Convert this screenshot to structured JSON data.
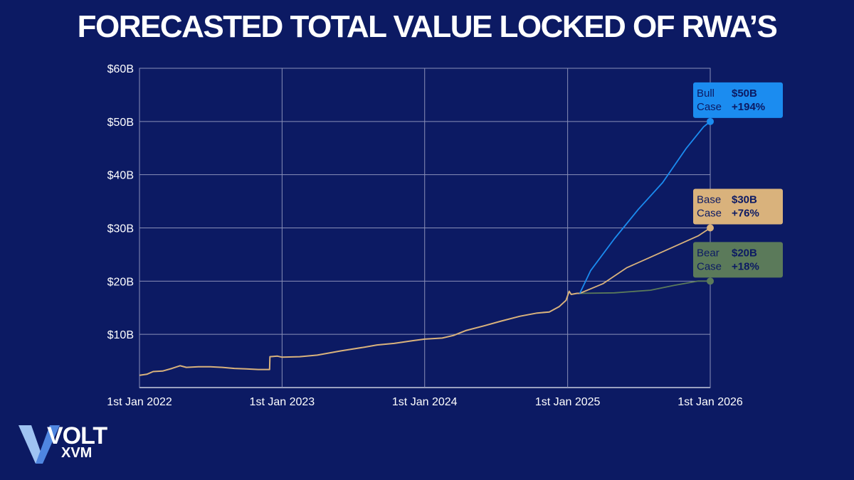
{
  "page": {
    "title": "FORECASTED TOTAL VALUE LOCKED OF RWA’S"
  },
  "logo": {
    "wordmark": "VOLT",
    "subtext": "XVM",
    "colors": {
      "v_light": "#9fc3f2",
      "v_mid": "#4f86e0",
      "text": "#ffffff"
    }
  },
  "colors": {
    "background": "#0c1a63",
    "grid": "#8a90b8",
    "axis_text": "#ffffff",
    "historical": "#d9b27c",
    "bull": "#1b8cf0",
    "base": "#d9b27c",
    "bear": "#5b7a5a"
  },
  "chart_data": {
    "type": "line",
    "title": "FORECASTED TOTAL VALUE LOCKED OF RWA’S",
    "xlabel": "",
    "ylabel": "",
    "x_axis": {
      "type": "date",
      "range": [
        "2022-01-01",
        "2026-01-01"
      ],
      "ticks": [
        "2022-01-01",
        "2023-01-01",
        "2024-01-01",
        "2025-01-01",
        "2026-01-01"
      ],
      "tick_labels": [
        "1st Jan 2022",
        "1st Jan 2023",
        "1st Jan 2024",
        "1st Jan 2025",
        "1st Jan 2026"
      ]
    },
    "y_axis": {
      "range": [
        0,
        60
      ],
      "unit": "billion USD",
      "ticks": [
        10,
        20,
        30,
        40,
        50,
        60
      ],
      "tick_labels": [
        "$10B",
        "$20B",
        "$30B",
        "$40B",
        "$50B",
        "$60B"
      ]
    },
    "grid": true,
    "series": [
      {
        "key": "historical",
        "style": "line",
        "points": [
          [
            "2022-01-01",
            2.3
          ],
          [
            "2022-01-20",
            2.5
          ],
          [
            "2022-02-05",
            3.0
          ],
          [
            "2022-03-01",
            3.1
          ],
          [
            "2022-03-25",
            3.6
          ],
          [
            "2022-04-15",
            4.1
          ],
          [
            "2022-05-01",
            3.8
          ],
          [
            "2022-06-01",
            3.9
          ],
          [
            "2022-07-01",
            3.9
          ],
          [
            "2022-08-01",
            3.8
          ],
          [
            "2022-09-01",
            3.6
          ],
          [
            "2022-10-01",
            3.5
          ],
          [
            "2022-11-01",
            3.4
          ],
          [
            "2022-11-30",
            3.4
          ],
          [
            "2022-12-01",
            5.8
          ],
          [
            "2022-12-20",
            5.9
          ],
          [
            "2023-01-01",
            5.7
          ],
          [
            "2023-02-15",
            5.8
          ],
          [
            "2023-04-01",
            6.1
          ],
          [
            "2023-06-01",
            6.9
          ],
          [
            "2023-08-01",
            7.6
          ],
          [
            "2023-09-01",
            8.0
          ],
          [
            "2023-10-15",
            8.3
          ],
          [
            "2023-12-01",
            8.8
          ],
          [
            "2024-01-01",
            9.1
          ],
          [
            "2024-02-15",
            9.3
          ],
          [
            "2024-03-15",
            9.8
          ],
          [
            "2024-04-15",
            10.7
          ],
          [
            "2024-06-01",
            11.6
          ],
          [
            "2024-07-15",
            12.5
          ],
          [
            "2024-09-01",
            13.4
          ],
          [
            "2024-10-15",
            14.0
          ],
          [
            "2024-11-15",
            14.2
          ],
          [
            "2024-12-10",
            15.2
          ],
          [
            "2024-12-28",
            16.4
          ],
          [
            "2025-01-05",
            18.1
          ],
          [
            "2025-01-10",
            17.5
          ],
          [
            "2025-01-25",
            17.7
          ],
          [
            "2025-02-01",
            17.7
          ]
        ]
      },
      {
        "key": "bull",
        "name": "Bull Case",
        "style": "line",
        "points": [
          [
            "2025-02-01",
            17.7
          ],
          [
            "2025-03-01",
            22.0
          ],
          [
            "2025-05-01",
            28.0
          ],
          [
            "2025-07-01",
            33.5
          ],
          [
            "2025-09-01",
            38.5
          ],
          [
            "2025-11-01",
            45.0
          ],
          [
            "2025-12-15",
            49.0
          ],
          [
            "2026-01-01",
            50.0
          ]
        ]
      },
      {
        "key": "base",
        "name": "Base Case",
        "style": "line",
        "points": [
          [
            "2025-02-01",
            17.7
          ],
          [
            "2025-04-01",
            19.5
          ],
          [
            "2025-06-01",
            22.5
          ],
          [
            "2025-08-01",
            24.5
          ],
          [
            "2025-10-01",
            26.5
          ],
          [
            "2025-12-01",
            28.5
          ],
          [
            "2026-01-01",
            30.0
          ]
        ]
      },
      {
        "key": "bear",
        "name": "Bear Case",
        "style": "line",
        "points": [
          [
            "2025-02-01",
            17.7
          ],
          [
            "2025-05-01",
            17.8
          ],
          [
            "2025-08-01",
            18.3
          ],
          [
            "2025-10-01",
            19.2
          ],
          [
            "2025-12-01",
            20.0
          ],
          [
            "2026-01-01",
            20.0
          ]
        ]
      }
    ],
    "callouts": [
      {
        "series": "bull",
        "line1": "Bull",
        "line2": "Case",
        "value": "$50B",
        "change": "+194%",
        "color": "#1b8cf0",
        "text_color": "#0c1a63",
        "value_color": "#0c1a63",
        "at": [
          "2026-01-01",
          50
        ]
      },
      {
        "series": "base",
        "line1": "Base",
        "line2": "Case",
        "value": "$30B",
        "change": "+76%",
        "color": "#d9b27c",
        "text_color": "#0c1a63",
        "value_color": "#0c1a63",
        "at": [
          "2026-01-01",
          30
        ]
      },
      {
        "series": "bear",
        "line1": "Bear",
        "line2": "Case",
        "value": "$20B",
        "change": "+18%",
        "color": "#5b7a5a",
        "text_color": "#0c1a63",
        "value_color": "#0c1a63",
        "at": [
          "2026-01-01",
          20
        ]
      }
    ]
  }
}
